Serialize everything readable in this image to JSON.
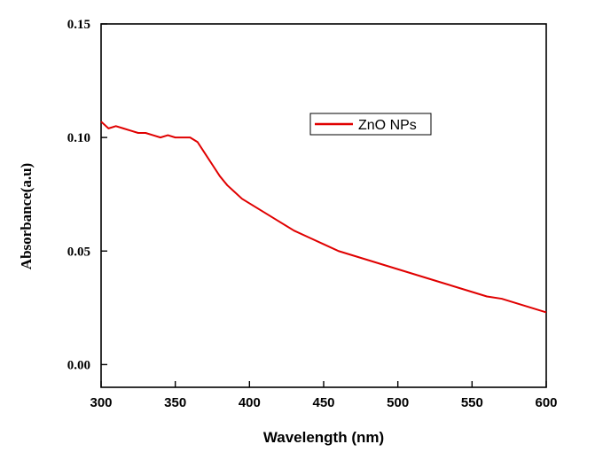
{
  "chart_data": {
    "type": "line",
    "title": "",
    "xlabel": "Wavelength (nm)",
    "ylabel": "Absorbance(a.u)",
    "xlim": [
      300,
      600
    ],
    "ylim": [
      -0.01,
      0.15
    ],
    "x_ticks": [
      300,
      350,
      400,
      450,
      500,
      550,
      600
    ],
    "x_tick_labels": [
      "300",
      "350",
      "400",
      "450",
      "500",
      "550",
      "600"
    ],
    "y_ticks": [
      0.0,
      0.05,
      0.1,
      0.15
    ],
    "y_tick_labels": [
      "0.00",
      "0.05",
      "0.10",
      "0.15"
    ],
    "grid": false,
    "legend_position": "upper-center",
    "series": [
      {
        "name": "ZnO NPs",
        "color": "#e00000",
        "x": [
          300,
          305,
          310,
          315,
          320,
          325,
          330,
          335,
          340,
          345,
          350,
          355,
          360,
          365,
          370,
          375,
          380,
          385,
          390,
          395,
          400,
          410,
          420,
          430,
          440,
          450,
          460,
          470,
          480,
          490,
          500,
          510,
          520,
          530,
          540,
          550,
          560,
          570,
          580,
          590,
          600
        ],
        "values": [
          0.107,
          0.104,
          0.105,
          0.104,
          0.103,
          0.102,
          0.102,
          0.101,
          0.1,
          0.101,
          0.1,
          0.1,
          0.1,
          0.098,
          0.093,
          0.088,
          0.083,
          0.079,
          0.076,
          0.073,
          0.071,
          0.067,
          0.063,
          0.059,
          0.056,
          0.053,
          0.05,
          0.048,
          0.046,
          0.044,
          0.042,
          0.04,
          0.038,
          0.036,
          0.034,
          0.032,
          0.03,
          0.029,
          0.027,
          0.025,
          0.023
        ]
      }
    ]
  }
}
